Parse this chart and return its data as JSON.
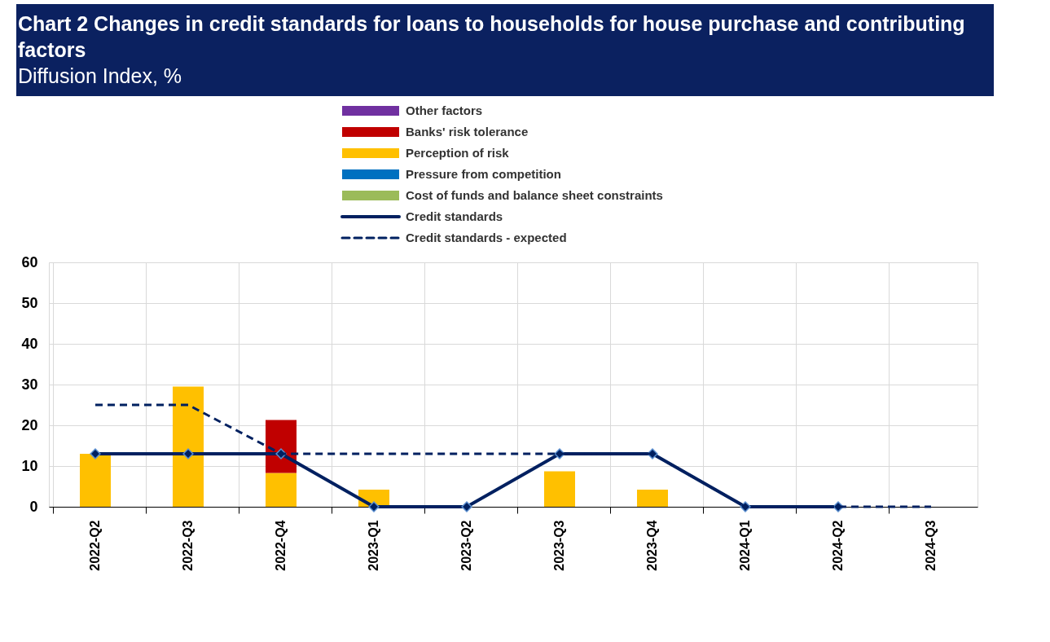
{
  "chart_data": {
    "type": "bar",
    "title": "Chart 2 Changes in credit standards for loans to households for house purchase and contributing factors",
    "subtitle": "Diffusion Index, %",
    "categories": [
      "2022-Q2",
      "2022-Q3",
      "2022-Q4",
      "2023-Q1",
      "2023-Q2",
      "2023-Q3",
      "2023-Q4",
      "2024-Q1",
      "2024-Q2",
      "2024-Q3"
    ],
    "stacked": true,
    "series": [
      {
        "name": "Cost of funds and balance sheet constraints",
        "color": "#9bbb59",
        "values": [
          0,
          0,
          0,
          0,
          0,
          0,
          0,
          0,
          0,
          0
        ]
      },
      {
        "name": "Pressure from competition",
        "color": "#0070c0",
        "values": [
          0,
          0,
          0,
          0,
          0,
          0,
          0,
          0,
          0,
          0
        ]
      },
      {
        "name": "Perception of risk",
        "color": "#ffc000",
        "values": [
          13,
          29.5,
          8.3,
          4.2,
          0,
          8.7,
          4.2,
          0,
          0,
          0
        ]
      },
      {
        "name": "Banks' risk tolerance",
        "color": "#c00000",
        "values": [
          0,
          0,
          13,
          0,
          0,
          0,
          0,
          0,
          0,
          0
        ]
      },
      {
        "name": "Other factors",
        "color": "#7030a0",
        "values": [
          0,
          0,
          0,
          0,
          0,
          0,
          0,
          0,
          0,
          0
        ]
      },
      {
        "name": "Credit standards",
        "type": "line",
        "color": "#002060",
        "marker": "diamond",
        "line_style": "solid",
        "values": [
          13,
          13,
          13,
          0,
          0,
          13,
          13,
          0,
          0,
          null
        ]
      },
      {
        "name": "Credit standards - expected",
        "type": "line",
        "color": "#002060",
        "marker": "none",
        "line_style": "dashed",
        "values": [
          25,
          25,
          13,
          13,
          13,
          13,
          13,
          0,
          0,
          0
        ]
      }
    ],
    "ylim": [
      0,
      60
    ],
    "yticks": [
      0,
      10,
      20,
      30,
      40,
      50,
      60
    ],
    "grid": true,
    "legend": "top"
  }
}
